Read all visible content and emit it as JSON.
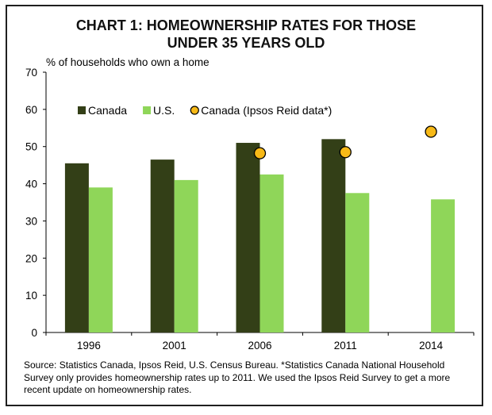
{
  "chart_data": {
    "type": "bar",
    "title_line1": "CHART 1: HOMEOWNERSHIP RATES FOR THOSE",
    "title_line2": "UNDER 35 YEARS OLD",
    "ylabel": "% of households who own a home",
    "ylim": [
      0,
      70
    ],
    "yticks": [
      0,
      10,
      20,
      30,
      40,
      50,
      60,
      70
    ],
    "categories": [
      "1996",
      "2001",
      "2006",
      "2011",
      "2014"
    ],
    "series": [
      {
        "name": "Canada",
        "type": "bar",
        "color": "#333f17",
        "values": [
          45.5,
          46.5,
          51,
          52,
          null
        ]
      },
      {
        "name": "U.S.",
        "type": "bar",
        "color": "#8fd659",
        "values": [
          39,
          41,
          42.5,
          37.5,
          35.8
        ]
      },
      {
        "name": "Canada (Ipsos Reid data*)",
        "type": "scatter",
        "color": "#f7b917",
        "values": [
          null,
          null,
          48.2,
          48.5,
          54
        ]
      }
    ],
    "legend_position": "top-left",
    "grid": false,
    "source_note": "Source: Statistics Canada, Ipsos Reid, U.S. Census Bureau. *Statistics Canada National Household Survey only provides homeownership rates up to 2011.  We used the Ipsos Reid Survey to get a more recent update on homeownership rates."
  }
}
